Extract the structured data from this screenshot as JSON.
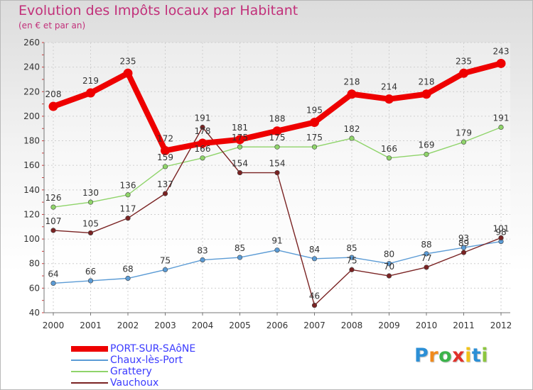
{
  "header": {
    "title": "Evolution des Impôts locaux par Habitant",
    "subtitle": "(en € et par an)"
  },
  "logo": {
    "letters": [
      "P",
      "r",
      "o",
      "x",
      "i",
      "t",
      "i"
    ],
    "colors": [
      "#2b8fd6",
      "#f08a1c",
      "#3bb34a",
      "#e0312a",
      "#f2c318",
      "#2b8fd6",
      "#8cc63f"
    ]
  },
  "chart_data": {
    "type": "line",
    "x": [
      "2000",
      "2001",
      "2002",
      "2003",
      "2004",
      "2005",
      "2006",
      "2007",
      "2008",
      "2009",
      "2010",
      "2011",
      "2012"
    ],
    "ylim": [
      40,
      260
    ],
    "yticks": [
      "40",
      "60",
      "80",
      "100",
      "120",
      "140",
      "160",
      "180",
      "200",
      "220",
      "240",
      "260"
    ],
    "grid": true,
    "legend_position": "bottom-left",
    "series": [
      {
        "name": "PORT-SUR-SAôNE",
        "color": "#ee0000",
        "thick": true,
        "values": [
          208,
          219,
          235,
          172,
          178,
          181,
          188,
          195,
          218,
          214,
          218,
          235,
          243
        ],
        "labels": [
          "208",
          "219",
          "235",
          "172",
          "178",
          "181",
          "188",
          "195",
          "218",
          "214",
          "218",
          "235",
          "243"
        ]
      },
      {
        "name": "Chaux-lès-Port",
        "color": "#5b9bd5",
        "thick": false,
        "values": [
          64,
          66,
          68,
          75,
          83,
          85,
          91,
          84,
          85,
          80,
          88,
          93,
          98
        ],
        "labels": [
          "64",
          "66",
          "68",
          "75",
          "83",
          "85",
          "91",
          "84",
          "85",
          "80",
          "88",
          "93",
          "98"
        ]
      },
      {
        "name": "Grattery",
        "color": "#8fd46a",
        "thick": false,
        "values": [
          126,
          130,
          136,
          159,
          166,
          175,
          175,
          175,
          182,
          166,
          169,
          179,
          191
        ],
        "labels": [
          "126",
          "130",
          "136",
          "159",
          "166",
          "175",
          "175",
          "175",
          "182",
          "166",
          "169",
          "179",
          "191"
        ]
      },
      {
        "name": "Vauchoux",
        "color": "#7a2323",
        "thick": false,
        "values": [
          107,
          105,
          117,
          137,
          191,
          154,
          154,
          46,
          75,
          70,
          77,
          89,
          101
        ],
        "labels": [
          "107",
          "105",
          "117",
          "137",
          "191",
          "154",
          "154",
          "46",
          "75",
          "70",
          "77",
          "89",
          "101"
        ]
      }
    ]
  }
}
